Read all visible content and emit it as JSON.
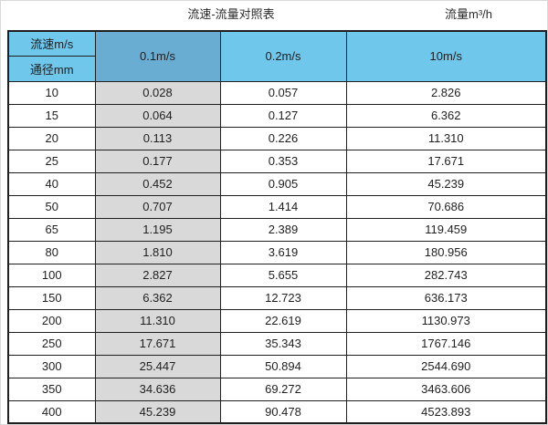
{
  "titles": {
    "main": "流速-流量对照表",
    "unit": "流量m³/h"
  },
  "colors": {
    "header_cyan": "#6fc7ec",
    "header_blue_dark": "#69aed2",
    "highlight_column_gray": "#d9d9d9",
    "border": "#1f1f1f"
  },
  "chart_data": {
    "type": "table",
    "title": "流速-流量对照表",
    "unit_label": "流量m³/h",
    "corner_top": "流速m/s",
    "corner_bottom": "通径mm",
    "columns": [
      "0.1m/s",
      "0.2m/s",
      "10m/s"
    ],
    "rows": [
      {
        "dn": "10",
        "values": [
          "0.028",
          "0.057",
          "2.826"
        ]
      },
      {
        "dn": "15",
        "values": [
          "0.064",
          "0.127",
          "6.362"
        ]
      },
      {
        "dn": "20",
        "values": [
          "0.113",
          "0.226",
          "11.310"
        ]
      },
      {
        "dn": "25",
        "values": [
          "0.177",
          "0.353",
          "17.671"
        ]
      },
      {
        "dn": "40",
        "values": [
          "0.452",
          "0.905",
          "45.239"
        ]
      },
      {
        "dn": "50",
        "values": [
          "0.707",
          "1.414",
          "70.686"
        ]
      },
      {
        "dn": "65",
        "values": [
          "1.195",
          "2.389",
          "119.459"
        ]
      },
      {
        "dn": "80",
        "values": [
          "1.810",
          "3.619",
          "180.956"
        ]
      },
      {
        "dn": "100",
        "values": [
          "2.827",
          "5.655",
          "282.743"
        ]
      },
      {
        "dn": "150",
        "values": [
          "6.362",
          "12.723",
          "636.173"
        ]
      },
      {
        "dn": "200",
        "values": [
          "11.310",
          "22.619",
          "1130.973"
        ]
      },
      {
        "dn": "250",
        "values": [
          "17.671",
          "35.343",
          "1767.146"
        ]
      },
      {
        "dn": "300",
        "values": [
          "25.447",
          "50.894",
          "2544.690"
        ]
      },
      {
        "dn": "350",
        "values": [
          "34.636",
          "69.272",
          "3463.606"
        ]
      },
      {
        "dn": "400",
        "values": [
          "45.239",
          "90.478",
          "4523.893"
        ]
      }
    ]
  }
}
